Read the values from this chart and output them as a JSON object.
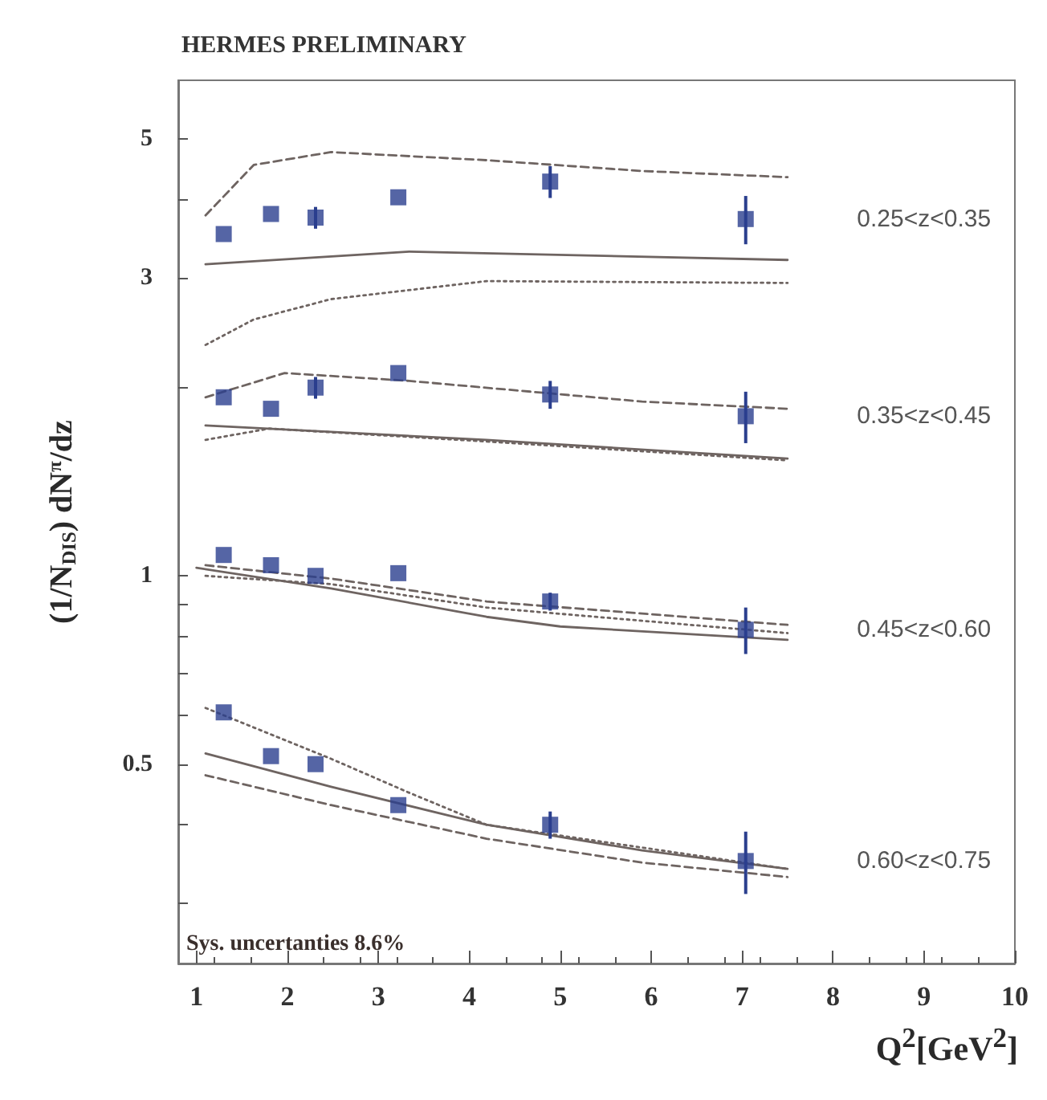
{
  "chart_data": {
    "type": "scatter",
    "title": "HERMES PRELIMINARY",
    "xlabel": "Q$^{2}$[GeV$^{2}$]",
    "ylabel": "(1/N$_{DIS}$) dN$^{π}$/dz",
    "log": "y",
    "grid": false,
    "xlim": [
      0.8,
      10
    ],
    "xticks": [
      1,
      2,
      3,
      4,
      5,
      6,
      7,
      8,
      9,
      10
    ],
    "ylim": [
      0.24,
      6.2
    ],
    "yticks": [
      {
        "value": 0.3,
        "label": null
      },
      {
        "value": 0.4,
        "label": null
      },
      0.5,
      {
        "value": 0.6,
        "label": null
      },
      {
        "value": 0.7,
        "label": null
      },
      {
        "value": 0.8,
        "label": null
      },
      {
        "value": 0.9,
        "label": null
      },
      1,
      {
        "value": 2,
        "label": null
      },
      3,
      {
        "value": 4,
        "label": null
      },
      5
    ],
    "annotations": [
      "0.25<z<0.35",
      "0.35<z<0.45",
      "0.45<z<0.60",
      "0.60<z<0.75",
      "Sys. uncertanties 8.6%"
    ],
    "series": [
      {
        "marker": "square",
        "color": "#2b3f8e",
        "x": [
          1.3,
          1.82,
          2.31,
          3.22,
          4.89,
          7.04
        ],
        "values": [
          3.52,
          3.79,
          3.74,
          4.03,
          4.27,
          3.72
        ],
        "errors": [
          null,
          null,
          0.15,
          null,
          0.25,
          0.33
        ]
      },
      {
        "marker": "square",
        "color": "#2b3f8e",
        "x": [
          1.3,
          1.82,
          2.31,
          3.22,
          4.89,
          7.04
        ],
        "values": [
          1.93,
          1.85,
          2.0,
          2.11,
          1.95,
          1.8
        ],
        "errors": [
          null,
          null,
          0.08,
          null,
          0.1,
          0.17
        ]
      },
      {
        "marker": "square",
        "color": "#2b3f8e",
        "x": [
          1.3,
          1.82,
          2.31,
          3.22,
          4.89,
          7.04
        ],
        "values": [
          1.08,
          1.04,
          1.0,
          1.01,
          0.91,
          0.82
        ],
        "errors": [
          null,
          null,
          null,
          null,
          0.03,
          0.07
        ]
      },
      {
        "marker": "square",
        "color": "#2b3f8e",
        "x": [
          1.3,
          1.82,
          2.31,
          3.22,
          4.89,
          7.04
        ],
        "values": [
          0.605,
          0.515,
          0.5,
          0.43,
          0.4,
          0.35
        ],
        "errors": [
          null,
          null,
          null,
          null,
          0.02,
          0.04
        ]
      },
      {
        "type": "line",
        "line_style": "dashed",
        "marker": "none",
        "color": "#6e6461",
        "x": [
          1.1,
          1.63,
          2.48,
          4.19,
          5.9,
          7.5
        ],
        "values": [
          3.77,
          4.54,
          4.76,
          4.62,
          4.44,
          4.34
        ]
      },
      {
        "type": "line",
        "line_style": "solid",
        "marker": "none",
        "color": "#6e6461",
        "x": [
          1.1,
          3.34,
          7.5
        ],
        "values": [
          3.15,
          3.3,
          3.2
        ]
      },
      {
        "type": "line",
        "line_style": "dotted",
        "marker": "none",
        "color": "#6e6461",
        "x": [
          1.1,
          1.63,
          2.48,
          4.19,
          7.5
        ],
        "values": [
          2.34,
          2.57,
          2.77,
          2.96,
          2.94
        ]
      },
      {
        "type": "line",
        "line_style": "dashed",
        "marker": "none",
        "color": "#6e6461",
        "x": [
          1.1,
          1.97,
          3.34,
          5.9,
          7.5
        ],
        "values": [
          1.93,
          2.11,
          2.05,
          1.9,
          1.85
        ]
      },
      {
        "type": "line",
        "line_style": "solid",
        "marker": "none",
        "color": "#6e6461",
        "x": [
          1.1,
          4.19,
          7.5
        ],
        "values": [
          1.74,
          1.65,
          1.54
        ]
      },
      {
        "type": "line",
        "line_style": "dotted",
        "marker": "none",
        "color": "#6e6461",
        "x": [
          1.1,
          1.8,
          4.19,
          7.5
        ],
        "values": [
          1.65,
          1.72,
          1.64,
          1.53
        ]
      },
      {
        "type": "line",
        "line_style": "solid",
        "marker": "none",
        "color": "#6e6461",
        "x": [
          1.0,
          2.48,
          4.19,
          5.0,
          7.5
        ],
        "values": [
          1.03,
          0.955,
          0.86,
          0.83,
          0.79
        ]
      },
      {
        "type": "line",
        "line_style": "dashed",
        "marker": "none",
        "color": "#6e6461",
        "x": [
          1.1,
          2.48,
          4.19,
          7.5
        ],
        "values": [
          1.04,
          0.99,
          0.91,
          0.835
        ]
      },
      {
        "type": "line",
        "line_style": "dotted",
        "marker": "none",
        "color": "#6e6461",
        "x": [
          1.1,
          2.48,
          4.19,
          7.5
        ],
        "values": [
          1.0,
          0.97,
          0.89,
          0.81
        ]
      },
      {
        "type": "line",
        "line_style": "solid",
        "marker": "none",
        "color": "#6e6461",
        "x": [
          1.1,
          2.48,
          4.19,
          5.9,
          7.5
        ],
        "values": [
          0.52,
          0.46,
          0.4,
          0.364,
          0.34
        ]
      },
      {
        "type": "line",
        "line_style": "dashed",
        "marker": "none",
        "color": "#6e6461",
        "x": [
          1.1,
          2.48,
          4.19,
          5.9,
          7.5
        ],
        "values": [
          0.48,
          0.43,
          0.38,
          0.348,
          0.33
        ]
      },
      {
        "type": "line",
        "line_style": "dotted",
        "marker": "none",
        "color": "#6e6461",
        "x": [
          1.1,
          2.48,
          3.34,
          4.19,
          7.5
        ],
        "values": [
          0.615,
          0.51,
          0.45,
          0.4,
          0.34
        ]
      }
    ]
  }
}
